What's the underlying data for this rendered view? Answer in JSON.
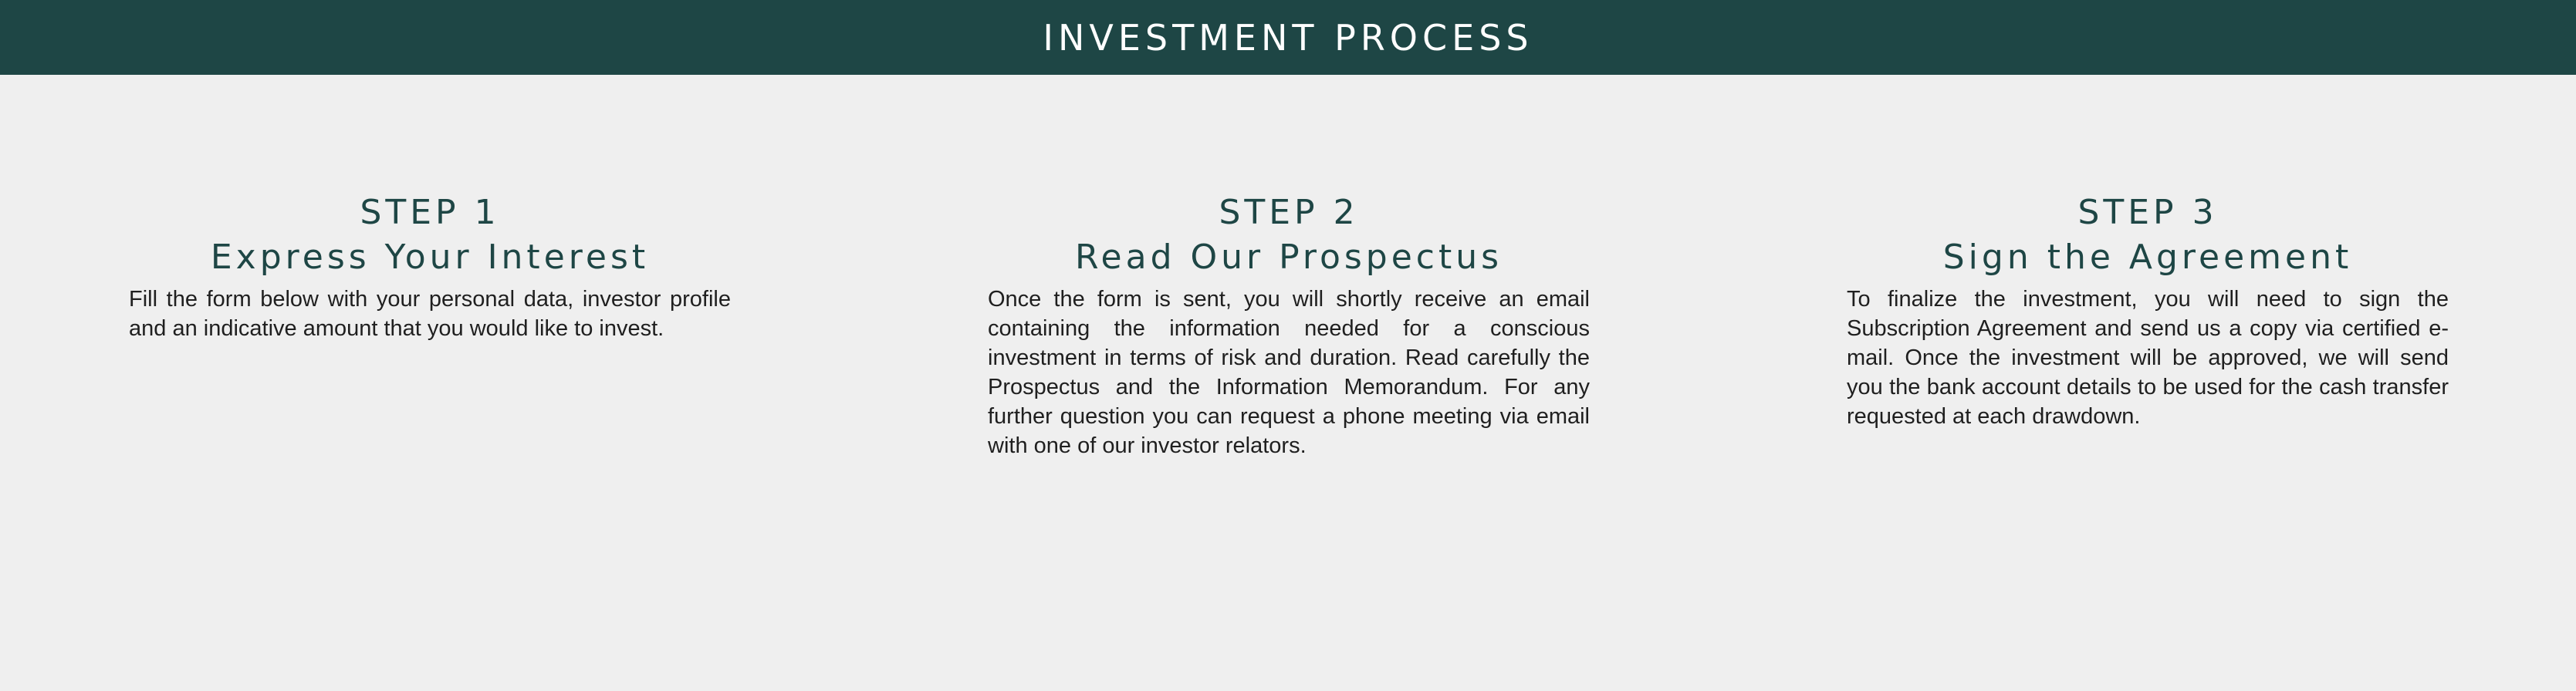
{
  "header": {
    "title": "INVESTMENT PROCESS",
    "background_color": "#1e4645"
  },
  "colors": {
    "accent": "#1e4645",
    "page_background": "#efefef",
    "body_text": "#1f1f1f"
  },
  "steps": [
    {
      "number": "STEP 1",
      "title": "Express Your Interest",
      "text": "Fill the form below with your personal data, investor profile and an indicative amount that you would like to invest."
    },
    {
      "number": "STEP 2",
      "title": "Read Our Prospectus",
      "text": "Once the form is sent, you will shortly receive an email containing the information needed for a conscious investment in terms of risk and duration. Read carefully the Prospectus and the Information Memorandum. For any further question you can request a phone meeting via email with one of our investor relators."
    },
    {
      "number": "STEP 3",
      "title": "Sign the Agreement",
      "text": "To finalize the investment, you will need to sign the Subscription Agreement and send us a copy via certified e-mail. Once the investment will be approved, we will send you the bank account details to be used for the cash transfer requested at each drawdown."
    }
  ]
}
